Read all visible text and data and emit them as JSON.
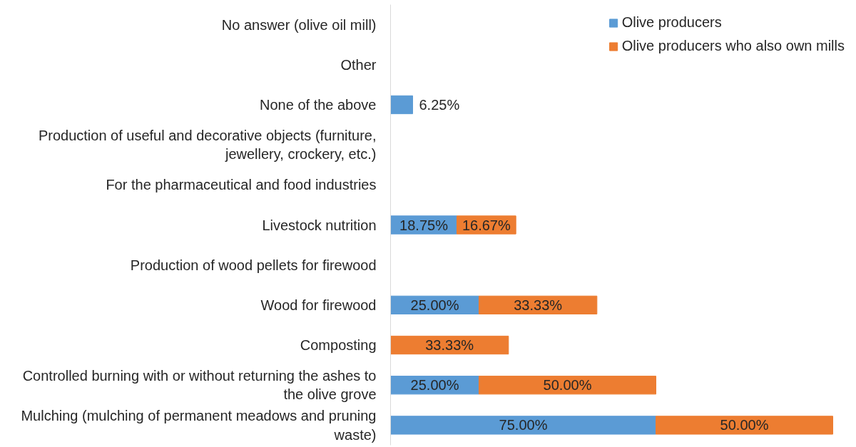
{
  "chart_data": {
    "type": "bar",
    "orientation": "horizontal",
    "stacked": true,
    "tick_labels": "y",
    "legend": "top right",
    "categories": [
      "No answer (olive oil mill)",
      "Other",
      "None of the above",
      "Production of useful and decorative objects (furniture, jewellery, crockery, etc.)",
      "For the pharmaceutical and food industries",
      "Livestock nutrition",
      "Production of wood pellets for firewood",
      "Wood for firewood",
      "Composting",
      "Controlled burning with or without returning the ashes to the olive grove",
      "Mulching (mulching of permanent meadows and pruning waste)"
    ],
    "series": [
      {
        "name": "Olive producers",
        "color": "#5b9bd5",
        "values": [
          null,
          null,
          6.25,
          null,
          null,
          18.75,
          null,
          25.0,
          null,
          25.0,
          75.0
        ],
        "value_labels": [
          null,
          null,
          "6.25%",
          null,
          null,
          "18.75%",
          null,
          "25.00%",
          null,
          "25.00%",
          "75.00%"
        ]
      },
      {
        "name": "Olive producers who also own mills",
        "color": "#ed7d31",
        "values": [
          null,
          null,
          null,
          null,
          null,
          16.67,
          null,
          33.33,
          33.33,
          50.0,
          50.0
        ],
        "value_labels": [
          null,
          null,
          null,
          null,
          null,
          "16.67%",
          null,
          "33.33%",
          "33.33%",
          "50.00%",
          "50.00%"
        ]
      }
    ]
  }
}
